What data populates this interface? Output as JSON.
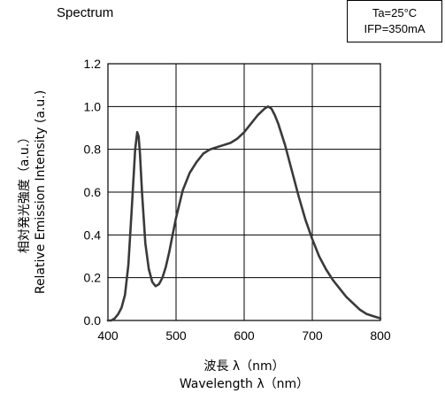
{
  "chart_title": "Spectrum",
  "conditions": {
    "line1": "Ta=25°C",
    "line2": "IFP=350mA"
  },
  "chart_data": {
    "type": "line",
    "xlabel_jp": "波長 λ（nm）",
    "xlabel_en": "Wavelength λ（nm）",
    "ylabel_jp": "相対発光強度（a.u.）",
    "ylabel_en": "Relative Emission Intensity (a.u.)",
    "xlim": [
      400,
      800
    ],
    "ylim": [
      0,
      1.2
    ],
    "x_ticks": [
      "400",
      "500",
      "600",
      "700",
      "800"
    ],
    "y_ticks": [
      "0.0",
      "0.2",
      "0.4",
      "0.6",
      "0.8",
      "1.0",
      "1.2"
    ],
    "grid": true,
    "line_color": "#3a3a3a",
    "series": [
      {
        "x": [
          400,
          405,
          410,
          415,
          420,
          425,
          430,
          435,
          440,
          443,
          445,
          447,
          450,
          455,
          460,
          465,
          470,
          475,
          480,
          485,
          490,
          495,
          500,
          510,
          520,
          530,
          540,
          550,
          560,
          570,
          580,
          590,
          600,
          610,
          620,
          630,
          635,
          640,
          645,
          650,
          660,
          670,
          680,
          690,
          700,
          710,
          720,
          730,
          740,
          750,
          760,
          770,
          780,
          790,
          800
        ],
        "y": [
          0.0,
          0.0,
          0.01,
          0.03,
          0.06,
          0.12,
          0.26,
          0.52,
          0.8,
          0.88,
          0.86,
          0.78,
          0.6,
          0.36,
          0.24,
          0.18,
          0.16,
          0.17,
          0.2,
          0.25,
          0.32,
          0.4,
          0.48,
          0.61,
          0.69,
          0.74,
          0.78,
          0.8,
          0.81,
          0.82,
          0.83,
          0.85,
          0.88,
          0.92,
          0.96,
          0.99,
          1.0,
          0.99,
          0.96,
          0.92,
          0.82,
          0.7,
          0.58,
          0.47,
          0.38,
          0.3,
          0.24,
          0.19,
          0.15,
          0.11,
          0.08,
          0.05,
          0.03,
          0.02,
          0.01
        ]
      }
    ]
  }
}
